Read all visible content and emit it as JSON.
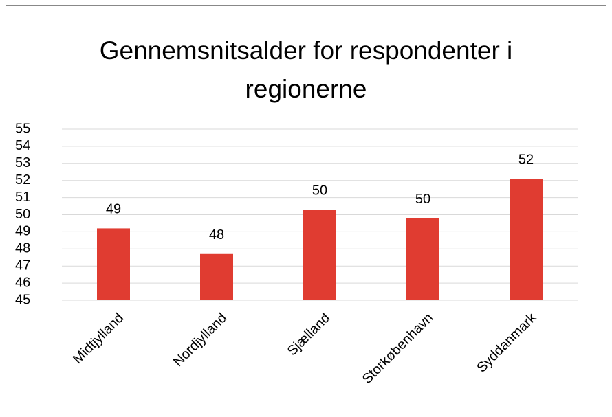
{
  "chart_data": {
    "type": "bar",
    "title": "Gennemsnitsalder for respondenter i regionerne",
    "categories": [
      "Midtjylland",
      "Nordjylland",
      "Sjælland",
      "Storkøbenhavn",
      "Syddanmark"
    ],
    "values": [
      49.2,
      47.7,
      50.3,
      49.8,
      52.1
    ],
    "value_labels": [
      "49",
      "48",
      "50",
      "50",
      "52"
    ],
    "color": "#e03c31",
    "ylim": [
      45,
      55
    ],
    "yticks": [
      45,
      46,
      47,
      48,
      49,
      50,
      51,
      52,
      53,
      54,
      55
    ],
    "grid": true
  }
}
